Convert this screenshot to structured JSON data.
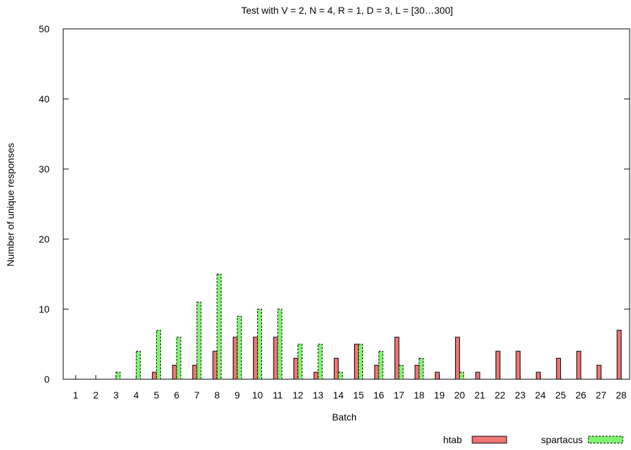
{
  "chart_data": {
    "type": "bar",
    "title": "Test with V = 2, N = 4, R = 1, D = 3, L = [30…300]",
    "xlabel": "Batch",
    "ylabel": "Number of unique responses",
    "ylim": [
      0,
      50
    ],
    "yticks": [
      0,
      10,
      20,
      30,
      40,
      50
    ],
    "categories": [
      "1",
      "2",
      "3",
      "4",
      "5",
      "6",
      "7",
      "8",
      "9",
      "10",
      "11",
      "12",
      "13",
      "14",
      "15",
      "16",
      "17",
      "18",
      "19",
      "20",
      "21",
      "22",
      "23",
      "24",
      "25",
      "26",
      "27",
      "28"
    ],
    "series": [
      {
        "name": "htab",
        "color": "#f07575",
        "style": "solid",
        "values": [
          0,
          0,
          0,
          0,
          1,
          2,
          2,
          4,
          6,
          6,
          6,
          3,
          1,
          3,
          5,
          2,
          6,
          2,
          1,
          6,
          1,
          4,
          4,
          1,
          3,
          4,
          2,
          7
        ]
      },
      {
        "name": "spartacus",
        "color": "#7ef56e",
        "style": "dashed",
        "values": [
          0,
          0,
          1,
          4,
          7,
          6,
          11,
          15,
          9,
          10,
          10,
          5,
          5,
          1,
          5,
          4,
          2,
          3,
          0,
          1,
          0,
          0,
          0,
          0,
          0,
          0,
          0,
          0
        ]
      }
    ],
    "grid": false,
    "legend_position": "bottom-right"
  }
}
